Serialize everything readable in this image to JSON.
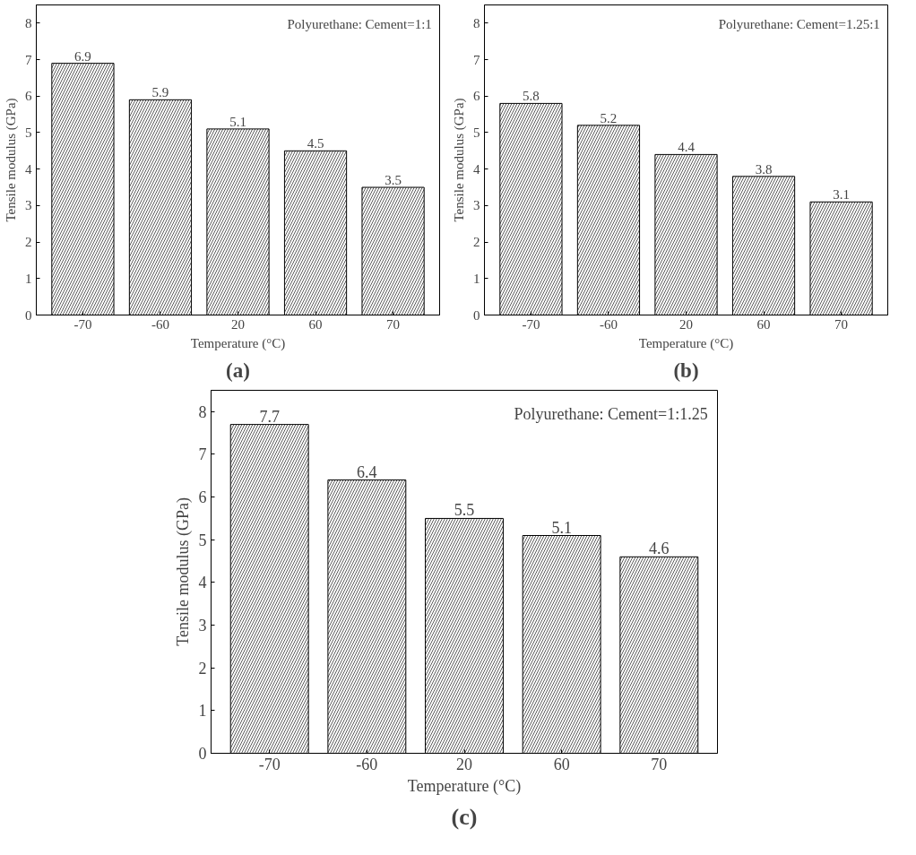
{
  "chart_data": [
    {
      "type": "bar",
      "title": "(a)",
      "xlabel": "Temperature (°C)",
      "ylabel": "Tensile modulus (GPa)",
      "categories": [
        "-70",
        "-60",
        "20",
        "60",
        "70"
      ],
      "values": [
        6.9,
        5.9,
        5.1,
        4.5,
        3.5
      ],
      "color": "#ffffff",
      "ylim": [
        0,
        8.5
      ],
      "yticks": [
        0,
        1,
        2,
        3,
        4,
        5,
        6,
        7,
        8
      ],
      "data_labels": true,
      "grid": false,
      "annotations": [
        "Polyurethane: Cement=1:1"
      ]
    },
    {
      "type": "bar",
      "title": "(b)",
      "xlabel": "Temperature (°C)",
      "ylabel": "Tensile modulus (GPa)",
      "categories": [
        "-70",
        "-60",
        "20",
        "60",
        "70"
      ],
      "values": [
        5.8,
        5.2,
        4.4,
        3.8,
        3.1
      ],
      "color": "#ffffff",
      "ylim": [
        0,
        8.5
      ],
      "yticks": [
        0,
        1,
        2,
        3,
        4,
        5,
        6,
        7,
        8
      ],
      "data_labels": true,
      "grid": false,
      "annotations": [
        "Polyurethane: Cement=1.25:1"
      ]
    },
    {
      "type": "bar",
      "title": "(c)",
      "xlabel": "Temperature (°C)",
      "ylabel": "Tensile modulus (GPa)",
      "categories": [
        "-70",
        "-60",
        "20",
        "60",
        "70"
      ],
      "values": [
        7.7,
        6.4,
        5.5,
        5.1,
        4.6
      ],
      "color": "#ffffff",
      "ylim": [
        0,
        8.5
      ],
      "yticks": [
        0,
        1,
        2,
        3,
        4,
        5,
        6,
        7,
        8
      ],
      "data_labels": true,
      "grid": false,
      "annotations": [
        "Polyurethane: Cement=1:1.25"
      ]
    }
  ]
}
